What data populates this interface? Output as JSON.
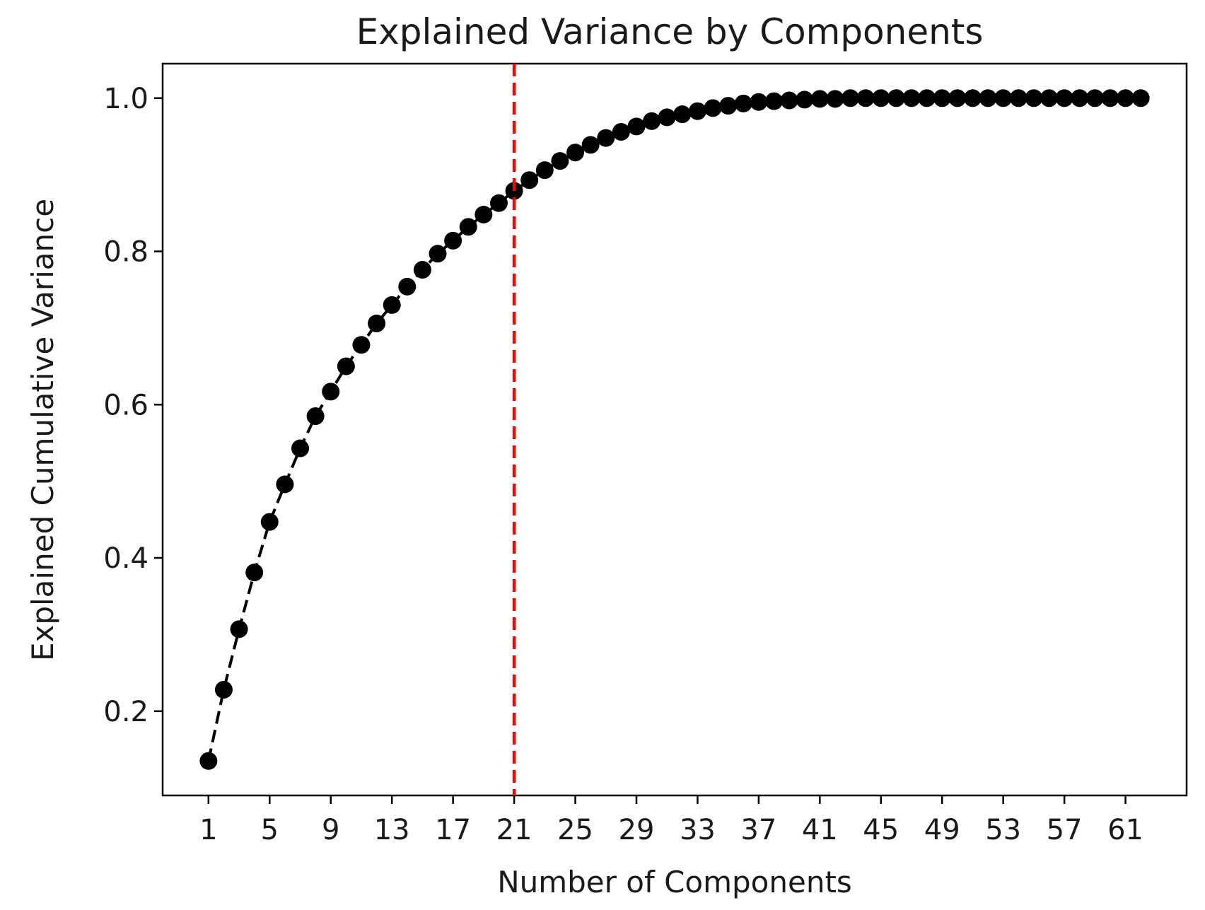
{
  "chart_data": {
    "type": "line",
    "title": "Explained Variance by Components",
    "xlabel": "Number of Components",
    "ylabel": "Explained Cumulative Variance",
    "xlim": [
      -2,
      65
    ],
    "ylim": [
      0.09,
      1.045
    ],
    "x_ticks": [
      1,
      5,
      9,
      13,
      17,
      21,
      25,
      29,
      33,
      37,
      41,
      45,
      49,
      53,
      57,
      61
    ],
    "y_ticks": [
      0.2,
      0.4,
      0.6,
      0.8,
      1.0
    ],
    "y_tick_labels": [
      "0.2",
      "0.4",
      "0.6",
      "0.8",
      "1.0"
    ],
    "grid": false,
    "vline": {
      "x": 21,
      "color": "#ff0000",
      "style": "dashed"
    },
    "series": [
      {
        "color": "#000000",
        "line_style": "dashed",
        "marker": "circle",
        "x": [
          1,
          2,
          3,
          4,
          5,
          6,
          7,
          8,
          9,
          10,
          11,
          12,
          13,
          14,
          15,
          16,
          17,
          18,
          19,
          20,
          21,
          22,
          23,
          24,
          25,
          26,
          27,
          28,
          29,
          30,
          31,
          32,
          33,
          34,
          35,
          36,
          37,
          38,
          39,
          40,
          41,
          42,
          43,
          44,
          45,
          46,
          47,
          48,
          49,
          50,
          51,
          52,
          53,
          54,
          55,
          56,
          57,
          58,
          59,
          60,
          61,
          62
        ],
        "values": [
          0.135,
          0.228,
          0.307,
          0.381,
          0.447,
          0.496,
          0.543,
          0.585,
          0.617,
          0.65,
          0.678,
          0.706,
          0.73,
          0.754,
          0.776,
          0.797,
          0.814,
          0.832,
          0.848,
          0.863,
          0.879,
          0.893,
          0.906,
          0.918,
          0.929,
          0.939,
          0.948,
          0.956,
          0.963,
          0.97,
          0.975,
          0.979,
          0.983,
          0.987,
          0.99,
          0.993,
          0.995,
          0.996,
          0.997,
          0.998,
          0.999,
          0.999,
          1.0,
          1.0,
          1.0,
          1.0,
          1.0,
          1.0,
          1.0,
          1.0,
          1.0,
          1.0,
          1.0,
          1.0,
          1.0,
          1.0,
          1.0,
          1.0,
          1.0,
          1.0,
          1.0,
          1.0
        ]
      }
    ]
  }
}
